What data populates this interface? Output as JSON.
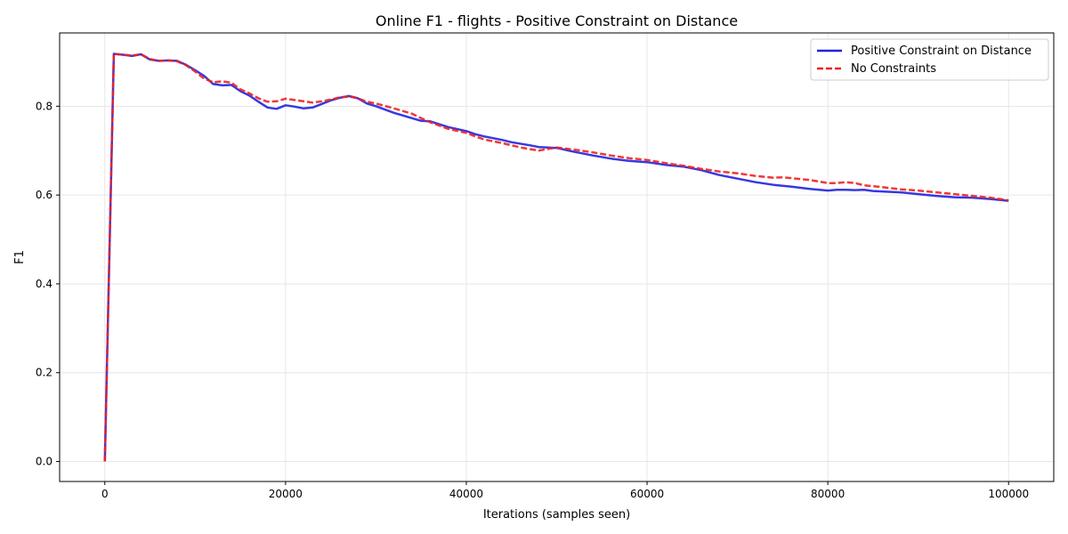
{
  "chart_data": {
    "type": "line",
    "title": "Online F1 - flights - Positive Constraint on Distance",
    "xlabel": "Iterations (samples seen)",
    "ylabel": "F1",
    "xlim": [
      -5000,
      105000
    ],
    "ylim": [
      -0.045,
      0.965
    ],
    "xticks": [
      0,
      20000,
      40000,
      60000,
      80000,
      100000
    ],
    "xtick_labels": [
      "0",
      "20000",
      "40000",
      "60000",
      "80000",
      "100000"
    ],
    "yticks": [
      0.0,
      0.2,
      0.4,
      0.6,
      0.8
    ],
    "ytick_labels": [
      "0.0",
      "0.2",
      "0.4",
      "0.6",
      "0.8"
    ],
    "grid": true,
    "legend_position": "top-right",
    "series": [
      {
        "name": "Positive Constraint on Distance",
        "color": "#2222dd",
        "style": "solid",
        "x": [
          0,
          1000,
          2000,
          3000,
          4000,
          5000,
          6000,
          7000,
          8000,
          9000,
          10000,
          11000,
          12000,
          13000,
          14000,
          15000,
          16000,
          17000,
          18000,
          19000,
          20000,
          21000,
          22000,
          23000,
          24000,
          25000,
          26000,
          27000,
          28000,
          29000,
          30000,
          32000,
          34000,
          35000,
          36000,
          38000,
          40000,
          41000,
          42000,
          44000,
          45000,
          47000,
          48000,
          50000,
          52000,
          54000,
          56000,
          58000,
          60000,
          62000,
          64000,
          66000,
          68000,
          70000,
          72000,
          74000,
          76000,
          78000,
          80000,
          81000,
          82000,
          83000,
          84000,
          85000,
          86000,
          88000,
          90000,
          92000,
          94000,
          96000,
          98000,
          100000
        ],
        "y": [
          0.0,
          0.918,
          0.916,
          0.913,
          0.917,
          0.905,
          0.902,
          0.903,
          0.902,
          0.893,
          0.881,
          0.868,
          0.85,
          0.847,
          0.848,
          0.834,
          0.824,
          0.81,
          0.797,
          0.794,
          0.802,
          0.799,
          0.795,
          0.797,
          0.805,
          0.813,
          0.819,
          0.823,
          0.818,
          0.806,
          0.8,
          0.785,
          0.773,
          0.767,
          0.766,
          0.753,
          0.744,
          0.737,
          0.732,
          0.724,
          0.719,
          0.712,
          0.708,
          0.706,
          0.697,
          0.689,
          0.682,
          0.677,
          0.674,
          0.668,
          0.664,
          0.656,
          0.645,
          0.637,
          0.629,
          0.623,
          0.619,
          0.614,
          0.61,
          0.612,
          0.612,
          0.611,
          0.612,
          0.609,
          0.608,
          0.606,
          0.602,
          0.598,
          0.595,
          0.594,
          0.591,
          0.587
        ]
      },
      {
        "name": "No Constraints",
        "color": "#ee2222",
        "style": "dashed",
        "x": [
          0,
          1000,
          2000,
          3000,
          4000,
          5000,
          6000,
          7000,
          8000,
          9000,
          10000,
          11000,
          12000,
          13000,
          14000,
          15000,
          16000,
          17000,
          18000,
          19000,
          20000,
          21000,
          22000,
          23000,
          24000,
          25000,
          26000,
          27000,
          28000,
          29000,
          30000,
          32000,
          34000,
          35000,
          36000,
          38000,
          40000,
          41000,
          42000,
          44000,
          46000,
          48000,
          50000,
          52000,
          54000,
          56000,
          58000,
          60000,
          62000,
          64000,
          66000,
          68000,
          70000,
          72000,
          74000,
          75000,
          76000,
          78000,
          80000,
          81000,
          82000,
          83000,
          84000,
          86000,
          88000,
          90000,
          92000,
          94000,
          96000,
          98000,
          100000
        ],
        "y": [
          0.0,
          0.918,
          0.916,
          0.914,
          0.917,
          0.906,
          0.902,
          0.903,
          0.901,
          0.892,
          0.878,
          0.862,
          0.854,
          0.856,
          0.853,
          0.838,
          0.829,
          0.818,
          0.81,
          0.811,
          0.817,
          0.814,
          0.811,
          0.808,
          0.811,
          0.815,
          0.82,
          0.822,
          0.818,
          0.81,
          0.806,
          0.795,
          0.783,
          0.773,
          0.764,
          0.749,
          0.74,
          0.732,
          0.725,
          0.717,
          0.707,
          0.7,
          0.707,
          0.702,
          0.696,
          0.689,
          0.683,
          0.679,
          0.672,
          0.666,
          0.659,
          0.653,
          0.649,
          0.643,
          0.639,
          0.64,
          0.638,
          0.634,
          0.627,
          0.627,
          0.629,
          0.627,
          0.622,
          0.618,
          0.613,
          0.61,
          0.606,
          0.602,
          0.598,
          0.594,
          0.588
        ]
      }
    ]
  }
}
